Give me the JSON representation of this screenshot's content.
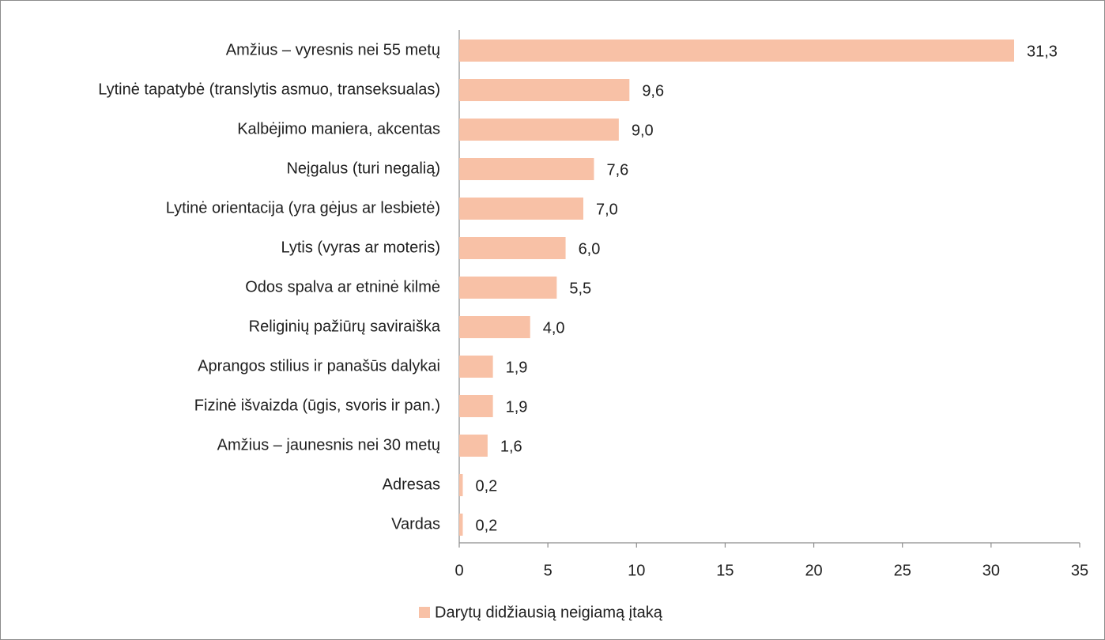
{
  "chart_data": {
    "type": "bar",
    "orientation": "horizontal",
    "categories": [
      "Amžius – vyresnis nei 55 metų",
      "Lytinė tapatybė (translytis asmuo, transeksualas)",
      "Kalbėjimo maniera, akcentas",
      "Neįgalus (turi negalią)",
      "Lytinė orientacija (yra gėjus ar lesbietė)",
      "Lytis (vyras ar moteris)",
      "Odos spalva ar etninė kilmė",
      "Religinių pažiūrų saviraiška",
      "Aprangos stilius ir panašūs dalykai",
      "Fizinė išvaizda (ūgis, svoris ir pan.)",
      "Amžius – jaunesnis nei 30 metų",
      "Adresas",
      "Vardas"
    ],
    "series": [
      {
        "name": "Darytų didžiausią neigiamą įtaką",
        "color": "#f8c1a6",
        "values": [
          31.3,
          9.6,
          9.0,
          7.6,
          7.0,
          6.0,
          5.5,
          4.0,
          1.9,
          1.9,
          1.6,
          0.2,
          0.2
        ],
        "value_labels": [
          "31,3",
          "9,6",
          "9,0",
          "7,6",
          "7,0",
          "6,0",
          "5,5",
          "4,0",
          "1,9",
          "1,9",
          "1,6",
          "0,2",
          "0,2"
        ]
      }
    ],
    "xlim": [
      0,
      35
    ],
    "xticks": [
      0,
      5,
      10,
      15,
      20,
      25,
      30,
      35
    ],
    "legend": "bottom"
  }
}
